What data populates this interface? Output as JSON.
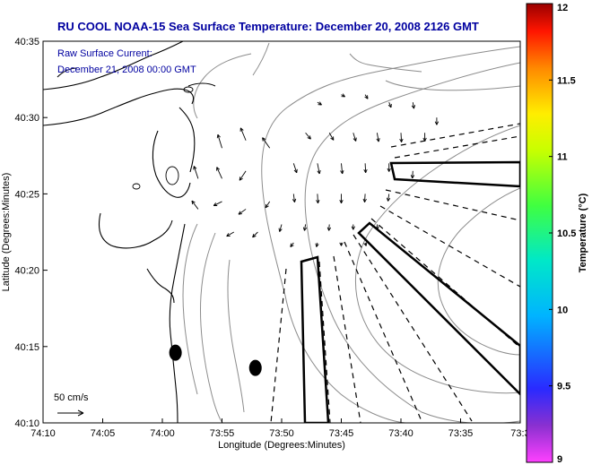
{
  "chart_data": {
    "type": "vector-map",
    "title": "RU COOL  NOAA-15  Sea Surface Temperature:  December 20, 2008 2126 GMT",
    "legend_lines": [
      "Raw Surface Current:",
      "December 21, 2008 00:00 GMT"
    ],
    "xlabel": "Longitude (Degrees:Minutes)",
    "ylabel": "Latitude (Degrees:Minutes)",
    "x_ticks": [
      "74:10",
      "74:05",
      "74:00",
      "73:55",
      "73:50",
      "73:45",
      "73:40",
      "73:35",
      "73:3"
    ],
    "y_ticks": [
      "40:35",
      "40:30",
      "40:25",
      "40:20",
      "40:15",
      "40:10"
    ],
    "xlim_minutes_west": [
      4450,
      4410
    ],
    "ylim_minutes_north": [
      2410,
      2435
    ],
    "scale_label": "50 cm/s",
    "colorbar": {
      "label": "Temperature (°C)",
      "ticks": [
        "12",
        "11.5",
        "11",
        "10.5",
        "10",
        "9.5",
        "9"
      ],
      "range": [
        9,
        12
      ]
    },
    "current_vectors": {
      "units": "cm/s",
      "note": "approximate vectors estimated from the figure (lon/lat in minutes)",
      "vectors": [
        {
          "lon": 4427.0,
          "lat": 2431.0,
          "u": 8,
          "v": -5
        },
        {
          "lon": 4425.0,
          "lat": 2431.5,
          "u": 7,
          "v": -4
        },
        {
          "lon": 4423.0,
          "lat": 2431.5,
          "u": 5,
          "v": -8
        },
        {
          "lon": 4421.0,
          "lat": 2431.0,
          "u": 4,
          "v": -10
        },
        {
          "lon": 4419.0,
          "lat": 2431.0,
          "u": 2,
          "v": -12
        },
        {
          "lon": 4417.0,
          "lat": 2430.0,
          "u": 0,
          "v": -14
        },
        {
          "lon": 4428.0,
          "lat": 2429.0,
          "u": 10,
          "v": -12
        },
        {
          "lon": 4426.0,
          "lat": 2429.0,
          "u": 8,
          "v": -14
        },
        {
          "lon": 4424.0,
          "lat": 2429.0,
          "u": 5,
          "v": -16
        },
        {
          "lon": 4422.0,
          "lat": 2429.0,
          "u": 3,
          "v": -17
        },
        {
          "lon": 4420.0,
          "lat": 2429.0,
          "u": 1,
          "v": -18
        },
        {
          "lon": 4418.0,
          "lat": 2429.0,
          "u": 0,
          "v": -16
        },
        {
          "lon": 4431.0,
          "lat": 2428.0,
          "u": -14,
          "v": 20
        },
        {
          "lon": 4433.0,
          "lat": 2428.5,
          "u": -10,
          "v": 24
        },
        {
          "lon": 4435.0,
          "lat": 2428.0,
          "u": -8,
          "v": 26
        },
        {
          "lon": 4429.0,
          "lat": 2427.0,
          "u": 6,
          "v": -18
        },
        {
          "lon": 4427.0,
          "lat": 2427.0,
          "u": 4,
          "v": -20
        },
        {
          "lon": 4425.0,
          "lat": 2427.0,
          "u": 2,
          "v": -20
        },
        {
          "lon": 4423.0,
          "lat": 2427.0,
          "u": 1,
          "v": -18
        },
        {
          "lon": 4421.0,
          "lat": 2427.0,
          "u": 0,
          "v": -16
        },
        {
          "lon": 4419.0,
          "lat": 2426.5,
          "u": -1,
          "v": -14
        },
        {
          "lon": 4433.0,
          "lat": 2426.5,
          "u": -12,
          "v": -18
        },
        {
          "lon": 4435.0,
          "lat": 2426.0,
          "u": -10,
          "v": 22
        },
        {
          "lon": 4437.0,
          "lat": 2426.0,
          "u": -8,
          "v": 24
        },
        {
          "lon": 4429.0,
          "lat": 2425.0,
          "u": 2,
          "v": -16
        },
        {
          "lon": 4427.0,
          "lat": 2425.0,
          "u": 1,
          "v": -18
        },
        {
          "lon": 4425.0,
          "lat": 2425.0,
          "u": 0,
          "v": -18
        },
        {
          "lon": 4423.0,
          "lat": 2425.0,
          "u": -1,
          "v": -16
        },
        {
          "lon": 4421.0,
          "lat": 2425.0,
          "u": -2,
          "v": -14
        },
        {
          "lon": 4431.0,
          "lat": 2424.5,
          "u": -8,
          "v": -12
        },
        {
          "lon": 4433.0,
          "lat": 2424.0,
          "u": -14,
          "v": -10
        },
        {
          "lon": 4435.0,
          "lat": 2424.5,
          "u": -16,
          "v": -8
        },
        {
          "lon": 4437.0,
          "lat": 2424.0,
          "u": -12,
          "v": 16
        },
        {
          "lon": 4430.0,
          "lat": 2423.0,
          "u": -4,
          "v": -14
        },
        {
          "lon": 4428.0,
          "lat": 2423.0,
          "u": -2,
          "v": -12
        },
        {
          "lon": 4426.0,
          "lat": 2423.0,
          "u": -1,
          "v": -12
        },
        {
          "lon": 4424.0,
          "lat": 2423.0,
          "u": 0,
          "v": -10
        },
        {
          "lon": 4422.0,
          "lat": 2423.0,
          "u": 1,
          "v": -10
        },
        {
          "lon": 4432.0,
          "lat": 2422.5,
          "u": -10,
          "v": -10
        },
        {
          "lon": 4434.0,
          "lat": 2422.5,
          "u": -14,
          "v": -8
        },
        {
          "lon": 4429.0,
          "lat": 2421.8,
          "u": -6,
          "v": -8
        },
        {
          "lon": 4427.0,
          "lat": 2421.8,
          "u": -2,
          "v": -8
        },
        {
          "lon": 4425.0,
          "lat": 2421.8,
          "u": 0,
          "v": -6
        },
        {
          "lon": 4423.0,
          "lat": 2421.8,
          "u": 2,
          "v": -6
        }
      ]
    },
    "markers": [
      {
        "type": "ellipse",
        "lon": 4438.9,
        "lat": 2414.6
      },
      {
        "type": "ellipse",
        "lon": 4432.2,
        "lat": 2413.6
      }
    ]
  }
}
